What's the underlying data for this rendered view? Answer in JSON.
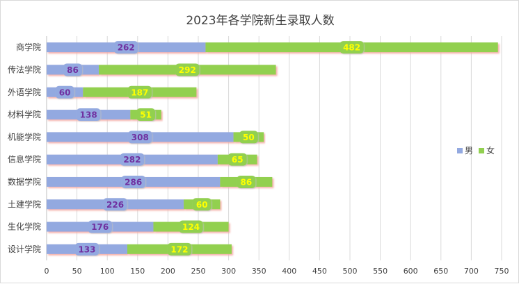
{
  "chart_data": {
    "type": "bar",
    "orientation": "horizontal",
    "stacked": true,
    "title": "2023年各学院新生录取人数",
    "categories": [
      "商学院",
      "传法学院",
      "外语学院",
      "材料学院",
      "机能学院",
      "信息学院",
      "数据学院",
      "土建学院",
      "生化学院",
      "设计学院"
    ],
    "series": [
      {
        "name": "男",
        "color": "#93a9e0",
        "label_color": "#7030a0",
        "values": [
          262,
          86,
          60,
          138,
          308,
          282,
          286,
          226,
          176,
          133
        ]
      },
      {
        "name": "女",
        "color": "#92d050",
        "label_color": "#ffff00",
        "values": [
          482,
          292,
          187,
          51,
          50,
          65,
          86,
          60,
          124,
          172
        ]
      }
    ],
    "xlim": [
      0,
      750
    ],
    "xticks": [
      0,
      50,
      100,
      150,
      200,
      250,
      300,
      350,
      400,
      450,
      500,
      550,
      600,
      650,
      700,
      750
    ],
    "grid": true,
    "legend_position": "right"
  }
}
